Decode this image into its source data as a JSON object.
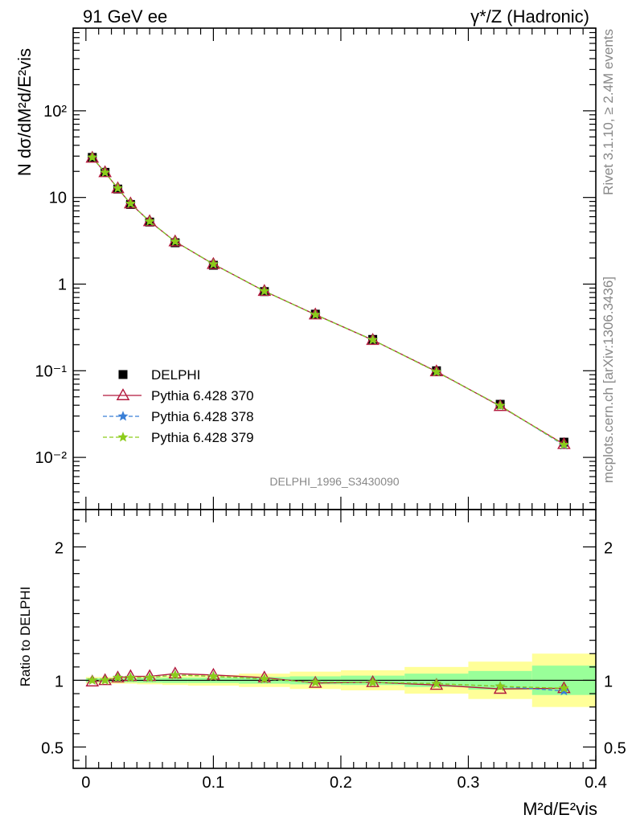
{
  "header": {
    "left": "91 GeV ee",
    "right": "γ*/Z (Hadronic)"
  },
  "side": {
    "top": "Rivet 3.1.10, ≥ 2.4M events",
    "bottom": "mcplots.cern.ch [arXiv:1306.3436]"
  },
  "watermark": "DELPHI_1996_S3430090",
  "chart_data": [
    {
      "type": "scatter",
      "panel": "main",
      "ylabel": "N dσ/dM²d/E²vis",
      "yscale": "log",
      "ylim": [
        0.0025,
        900
      ],
      "xlim": [
        -0.01,
        0.4
      ],
      "yticks": [
        {
          "value": 0.01,
          "label": "10⁻²"
        },
        {
          "value": 0.1,
          "label": "10⁻¹"
        },
        {
          "value": 1,
          "label": "1"
        },
        {
          "value": 10,
          "label": "10"
        },
        {
          "value": 100,
          "label": "10²"
        }
      ],
      "x": [
        0.005,
        0.015,
        0.025,
        0.035,
        0.05,
        0.07,
        0.1,
        0.14,
        0.18,
        0.225,
        0.275,
        0.325,
        0.375
      ],
      "series": [
        {
          "name": "DELPHI",
          "color": "#000000",
          "marker": "square",
          "values": [
            29,
            19.5,
            12.5,
            8.3,
            5.2,
            3.0,
            1.65,
            0.82,
            0.45,
            0.23,
            0.1,
            0.041,
            0.015
          ]
        },
        {
          "name": "Pythia 6.428 370",
          "color": "#b2183c",
          "marker": "open-triangle",
          "line": "solid",
          "values": [
            28.6,
            19.5,
            12.7,
            8.5,
            5.3,
            3.1,
            1.7,
            0.83,
            0.445,
            0.226,
            0.098,
            0.039,
            0.0142
          ]
        },
        {
          "name": "Pythia 6.428 378",
          "color": "#3a7fd6",
          "marker": "star",
          "line": "dashed",
          "values": [
            29.0,
            19.4,
            12.8,
            8.5,
            5.3,
            3.1,
            1.7,
            0.83,
            0.443,
            0.227,
            0.097,
            0.0395,
            0.0138
          ]
        },
        {
          "name": "Pythia 6.428 379",
          "color": "#8ccc1a",
          "marker": "star",
          "line": "dashed",
          "values": [
            29.0,
            19.4,
            12.8,
            8.5,
            5.3,
            3.1,
            1.7,
            0.83,
            0.443,
            0.227,
            0.097,
            0.0395,
            0.014
          ]
        }
      ]
    },
    {
      "type": "line",
      "panel": "ratio",
      "ylabel": "Ratio to DELPHI",
      "xlabel": "M²d/E²vis",
      "ylim": [
        0.34,
        2.28
      ],
      "xlim": [
        -0.01,
        0.4
      ],
      "xticks": [
        "0",
        "0.1",
        "0.2",
        "0.3",
        "0.4"
      ],
      "yticks": [
        "0.5",
        "1",
        "2"
      ],
      "bin_edges": [
        0,
        0.01,
        0.02,
        0.03,
        0.04,
        0.06,
        0.08,
        0.12,
        0.16,
        0.2,
        0.25,
        0.3,
        0.35,
        0.4
      ],
      "band_stat": [
        0.015,
        0.015,
        0.015,
        0.015,
        0.018,
        0.02,
        0.02,
        0.025,
        0.03,
        0.035,
        0.05,
        0.07,
        0.11
      ],
      "band_total": [
        0.025,
        0.025,
        0.025,
        0.025,
        0.03,
        0.035,
        0.04,
        0.05,
        0.065,
        0.075,
        0.1,
        0.14,
        0.2
      ],
      "band_colors": {
        "stat": "#99ff99",
        "total": "#ffff99"
      },
      "x": [
        0.005,
        0.015,
        0.025,
        0.035,
        0.05,
        0.07,
        0.1,
        0.14,
        0.18,
        0.225,
        0.275,
        0.325,
        0.375
      ],
      "series": [
        {
          "name": "Pythia 6.428 370",
          "color": "#b2183c",
          "marker": "open-triangle",
          "line": "solid",
          "values": [
            0.99,
            1.0,
            1.02,
            1.03,
            1.03,
            1.05,
            1.04,
            1.02,
            0.98,
            0.985,
            0.965,
            0.935,
            0.94
          ]
        },
        {
          "name": "Pythia 6.428 378",
          "color": "#3a7fd6",
          "marker": "star",
          "line": "dashed",
          "values": [
            1.0,
            1.0,
            1.02,
            1.02,
            1.02,
            1.04,
            1.03,
            1.01,
            0.985,
            0.985,
            0.975,
            0.955,
            0.92
          ]
        },
        {
          "name": "Pythia 6.428 379",
          "color": "#8ccc1a",
          "marker": "star",
          "line": "dashed",
          "values": [
            1.0,
            1.0,
            1.02,
            1.02,
            1.02,
            1.04,
            1.03,
            1.01,
            0.985,
            0.985,
            0.975,
            0.955,
            0.94
          ]
        }
      ]
    }
  ]
}
